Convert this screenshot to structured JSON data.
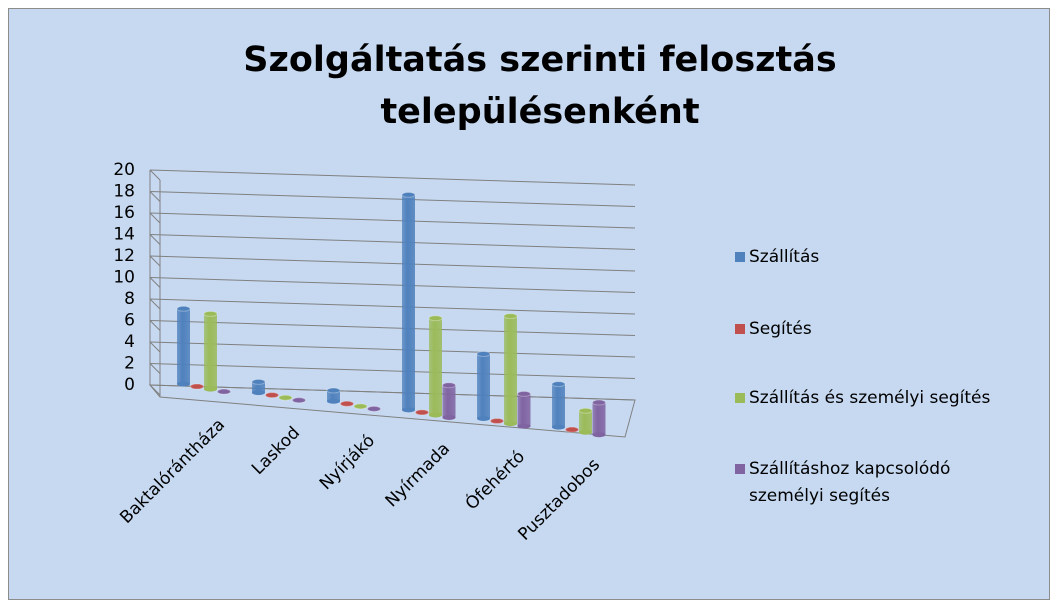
{
  "chart_data": {
    "type": "bar3d",
    "title": "Szolgáltatás szerinti felosztás településenként",
    "categories": [
      "Baktalórántháza",
      "Laskod",
      "Nyírjákó",
      "Nyírmada",
      "Ófehértó",
      "Pusztadobos"
    ],
    "series": [
      {
        "name": "Szállítás",
        "color": "#4f81bd",
        "values": [
          7,
          1,
          1,
          20,
          6,
          4
        ]
      },
      {
        "name": "Segítés",
        "color": "#c0504d",
        "values": [
          0,
          0,
          0,
          0,
          0,
          0
        ]
      },
      {
        "name": "Szállítás és személyi segítés",
        "color": "#9bbb59",
        "values": [
          7,
          0,
          0,
          9,
          10,
          2
        ]
      },
      {
        "name": "Szállításhoz kapcsolódó személyi segítés",
        "color": "#8064a2",
        "values": [
          0,
          0,
          0,
          3,
          3,
          3
        ]
      }
    ],
    "ylim": [
      0,
      20
    ],
    "yticks": [
      0,
      2,
      4,
      6,
      8,
      10,
      12,
      14,
      16,
      18,
      20
    ],
    "grid": true,
    "legend": "right"
  }
}
